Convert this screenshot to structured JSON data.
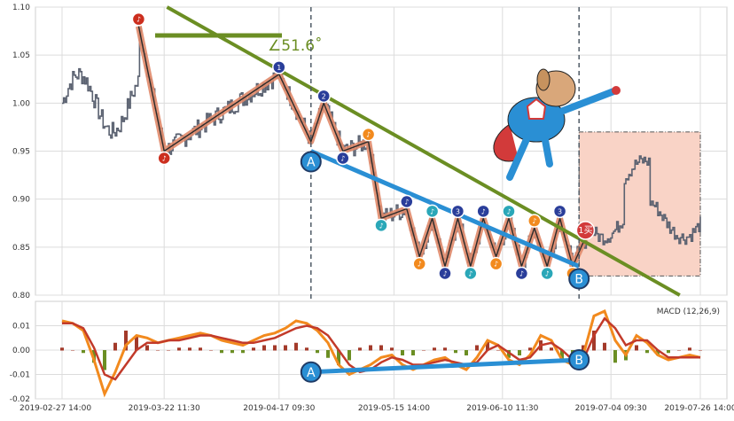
{
  "colors": {
    "background": "#ffffff",
    "panel_bg": "#ffffff",
    "grid": "#dcdcdc",
    "price": "#5a6170",
    "zigzag_outer": "#e0896a",
    "trend_green": "#6b8e23",
    "ab_blue": "#2a8fd4",
    "pivot_red": "#cc2e1e",
    "pivot_orange": "#f28a1e",
    "pivot_teal": "#2aa7b8",
    "pivot_navy": "#2a3e9a",
    "vline": "#4f5b66",
    "box_fill": "#f9d3c6",
    "box_border": "#555555",
    "macd_line": "#f28a1e",
    "signal_line": "#c23a2a",
    "hist_pos": "#a33a2a",
    "hist_neg": "#6b8e23",
    "buy_marker": "#d23a3a"
  },
  "icons": [
    "superhero-dog-icon"
  ],
  "chart_data": [
    {
      "type": "line",
      "name": "price-panel",
      "ylim": [
        0.8,
        1.1
      ],
      "yticks": [
        "0.80",
        "0.85",
        "0.90",
        "0.95",
        "1.00",
        "1.05",
        "1.10"
      ],
      "ytick_values": [
        0.8,
        0.85,
        0.9,
        0.95,
        1.0,
        1.05,
        1.1
      ],
      "angle_annotation": "∠51.6˚",
      "trendline": {
        "from": {
          "x": 0.22,
          "y": 1.1
        },
        "to": {
          "x": 0.94,
          "y": 0.8
        }
      },
      "zigzag": [
        {
          "x": 0.12,
          "y": 1.08,
          "label": "♪"
        },
        {
          "x": 0.16,
          "y": 0.95,
          "label": "♪"
        },
        {
          "x": 0.34,
          "y": 1.03,
          "label": "1"
        },
        {
          "x": 0.39,
          "y": 0.96,
          "label": "A"
        },
        {
          "x": 0.41,
          "y": 1.0,
          "label": "2"
        },
        {
          "x": 0.44,
          "y": 0.95,
          "label": "♪"
        },
        {
          "x": 0.48,
          "y": 0.96,
          "label": "♪"
        },
        {
          "x": 0.5,
          "y": 0.88,
          "label": "♪"
        },
        {
          "x": 0.54,
          "y": 0.89,
          "label": "♪"
        },
        {
          "x": 0.56,
          "y": 0.84,
          "label": "♪"
        },
        {
          "x": 0.58,
          "y": 0.88,
          "label": "♪"
        },
        {
          "x": 0.6,
          "y": 0.83,
          "label": "♪"
        },
        {
          "x": 0.62,
          "y": 0.88,
          "label": "3"
        },
        {
          "x": 0.64,
          "y": 0.83,
          "label": "♪"
        },
        {
          "x": 0.66,
          "y": 0.88,
          "label": "♪"
        },
        {
          "x": 0.68,
          "y": 0.84,
          "label": "♪"
        },
        {
          "x": 0.7,
          "y": 0.88,
          "label": "♪"
        },
        {
          "x": 0.72,
          "y": 0.83,
          "label": "♪"
        },
        {
          "x": 0.74,
          "y": 0.87,
          "label": "♪"
        },
        {
          "x": 0.76,
          "y": 0.83,
          "label": "♪"
        },
        {
          "x": 0.78,
          "y": 0.88,
          "label": "3"
        },
        {
          "x": 0.8,
          "y": 0.83,
          "label": "♪"
        },
        {
          "x": 0.82,
          "y": 0.86,
          "label": "1买"
        }
      ],
      "ab_line": {
        "a_label": "A",
        "b_label": "B",
        "a": {
          "x": 0.39,
          "y": 0.95
        },
        "b": {
          "x": 0.81,
          "y": 0.83
        }
      },
      "vlines_at_x": [
        0.39,
        0.81
      ],
      "box": {
        "x0": 0.81,
        "x1": 1.0,
        "y0": 0.82,
        "y1": 0.97
      }
    },
    {
      "type": "line",
      "name": "macd-panel",
      "legend": "MACD (12,26,9)",
      "ylim": [
        -0.02,
        0.02
      ],
      "yticks": [
        "-0.02",
        "-0.01",
        "0.00",
        "0.01"
      ],
      "ytick_values": [
        -0.02,
        -0.01,
        0.0,
        0.01
      ],
      "ab_line": {
        "a_label": "A",
        "b_label": "B",
        "a": {
          "x": 0.39,
          "y": -0.009
        },
        "b": {
          "x": 0.81,
          "y": -0.004
        }
      },
      "macd": [
        0.012,
        0.011,
        0.008,
        -0.004,
        -0.018,
        -0.009,
        0.002,
        0.006,
        0.005,
        0.003,
        0.004,
        0.005,
        0.006,
        0.007,
        0.006,
        0.004,
        0.003,
        0.002,
        0.004,
        0.006,
        0.007,
        0.009,
        0.012,
        0.011,
        0.008,
        0.003,
        -0.006,
        -0.01,
        -0.008,
        -0.006,
        -0.003,
        -0.002,
        -0.006,
        -0.008,
        -0.006,
        -0.004,
        -0.003,
        -0.006,
        -0.008,
        -0.003,
        0.004,
        0.002,
        -0.004,
        -0.006,
        -0.002,
        0.006,
        0.004,
        -0.004,
        -0.006,
        -0.002,
        0.014,
        0.016,
        0.004,
        -0.002,
        0.006,
        0.003,
        -0.002,
        -0.004,
        -0.003,
        -0.002,
        -0.003
      ],
      "signal": [
        0.011,
        0.011,
        0.009,
        0.001,
        -0.01,
        -0.012,
        -0.006,
        0.0,
        0.003,
        0.003,
        0.004,
        0.004,
        0.005,
        0.006,
        0.006,
        0.005,
        0.004,
        0.003,
        0.003,
        0.004,
        0.005,
        0.007,
        0.009,
        0.01,
        0.009,
        0.006,
        0.0,
        -0.006,
        -0.009,
        -0.008,
        -0.005,
        -0.003,
        -0.004,
        -0.006,
        -0.006,
        -0.005,
        -0.004,
        -0.005,
        -0.006,
        -0.005,
        0.0,
        0.002,
        -0.001,
        -0.004,
        -0.003,
        0.002,
        0.003,
        0.0,
        -0.004,
        -0.004,
        0.006,
        0.013,
        0.009,
        0.002,
        0.004,
        0.004,
        0.0,
        -0.003,
        -0.003,
        -0.003,
        -0.003
      ]
    }
  ],
  "x_labels": [
    "2019-02-27 14:00",
    "2019-03-22 11:30",
    "2019-04-17 09:30",
    "2019-05-15 14:00",
    "2019-06-10 11:30",
    "2019-07-04 09:30",
    "2019-07-26 14:00"
  ],
  "x_label_fracs": [
    0.0,
    0.16,
    0.34,
    0.52,
    0.69,
    0.86,
    1.0
  ]
}
